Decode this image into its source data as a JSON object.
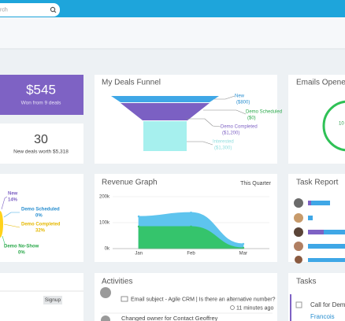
{
  "search": {
    "placeholder": "rch"
  },
  "won": {
    "amount": "$545",
    "caption": "Won from 9 deals"
  },
  "new_deals": {
    "count": "30",
    "caption": "New deals worth $5,318"
  },
  "funnel": {
    "title": "My Deals Funnel",
    "stages": [
      {
        "name": "New",
        "amount": "($800)"
      },
      {
        "name": "Demo Scheduled",
        "amount": "($0)"
      },
      {
        "name": "Demo Completed",
        "amount": "($1,200)"
      },
      {
        "name": "Interested",
        "amount": "($1,300)"
      }
    ]
  },
  "emails": {
    "title": "Emails Opened",
    "value": "10"
  },
  "pie": {
    "labels": [
      {
        "name": "New",
        "pct": "14%"
      },
      {
        "name": "Demo Scheduled",
        "pct": "0%"
      },
      {
        "name": "Demo Completed",
        "pct": "32%"
      },
      {
        "name": "Demo No-Show",
        "pct": "0%"
      }
    ]
  },
  "revenue": {
    "title": "Revenue Graph",
    "period": "This Quarter",
    "categories": [
      "Jan",
      "Feb",
      "Mar"
    ],
    "ylim": [
      0,
      200000
    ],
    "yticks": [
      {
        "value": 0,
        "label": "0k"
      },
      {
        "value": 100000,
        "label": "100k"
      },
      {
        "value": 200000,
        "label": "200k"
      }
    ],
    "series": [
      {
        "color": "#5ec4ee",
        "values": [
          124000,
          139000,
          18000
        ]
      },
      {
        "color": "#35c46c",
        "values": [
          85000,
          85000,
          3000
        ]
      }
    ]
  },
  "task_report": {
    "title": "Task Report"
  },
  "contacts": {
    "tag": "Signup"
  },
  "activities": {
    "title": "Activities",
    "items": [
      {
        "text": "Email subject - Agile CRM | Is there an alternative number?",
        "time": "11 minutes ago"
      },
      {
        "text": "Changed owner for Contact Geoffrey"
      }
    ]
  },
  "tasks": {
    "title": "Tasks",
    "item": "Call for Demo",
    "owner": "Francois"
  }
}
